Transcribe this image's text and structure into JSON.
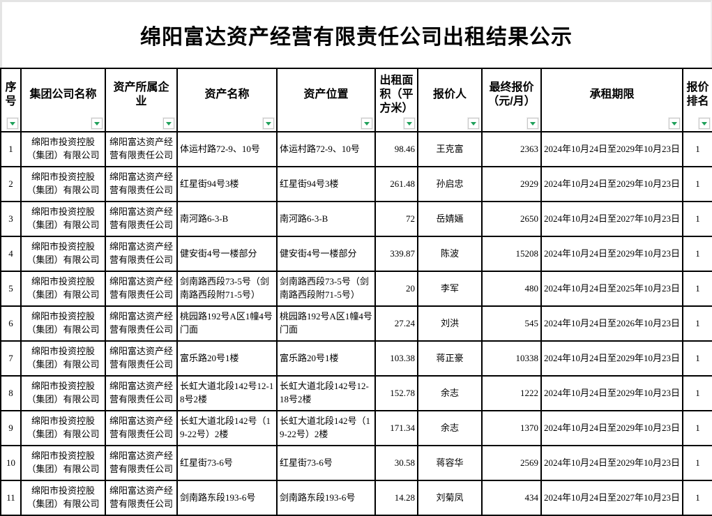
{
  "page": {
    "title": "绵阳富达资产经营有限责任公司出租结果公示"
  },
  "table": {
    "filter_color": "#1FA05A",
    "columns": [
      {
        "key": "index",
        "label": "序号"
      },
      {
        "key": "group-company",
        "label": "集团公司名称"
      },
      {
        "key": "asset-owner",
        "label": "资产所属企业"
      },
      {
        "key": "asset-name",
        "label": "资产名称"
      },
      {
        "key": "asset-location",
        "label": "资产位置"
      },
      {
        "key": "area-sqm",
        "label": "出租面积（平方米）"
      },
      {
        "key": "bidder",
        "label": "报价人"
      },
      {
        "key": "final-price",
        "label": "最终报价（元/月）"
      },
      {
        "key": "lease-term",
        "label": "承租期限"
      },
      {
        "key": "price-rank",
        "label": "报价排名"
      }
    ],
    "rows": [
      [
        "1",
        "绵阳市投资控股（集团）有限公司",
        "绵阳富达资产经营有限责任公司",
        "体运村路72-9、10号",
        "体运村路72-9、10号",
        "98.46",
        "王克富",
        "2363",
        "2024年10月24日至2029年10月23日",
        "1"
      ],
      [
        "2",
        "绵阳市投资控股（集团）有限公司",
        "绵阳富达资产经营有限责任公司",
        "红星街94号3楼",
        "红星街94号3楼",
        "261.48",
        "孙启忠",
        "2929",
        "2024年10月24日至2029年10月23日",
        "1"
      ],
      [
        "3",
        "绵阳市投资控股（集团）有限公司",
        "绵阳富达资产经营有限责任公司",
        "南河路6-3-B",
        "南河路6-3-B",
        "72",
        "岳婧婳",
        "2650",
        "2024年10月24日至2027年10月23日",
        "1"
      ],
      [
        "4",
        "绵阳市投资控股（集团）有限公司",
        "绵阳富达资产经营有限责任公司",
        "健安街4号一楼部分",
        "健安街4号一楼部分",
        "339.87",
        "陈波",
        "15208",
        "2024年10月24日至2029年10月23日",
        "1"
      ],
      [
        "5",
        "绵阳市投资控股（集团）有限公司",
        "绵阳富达资产经营有限责任公司",
        "剑南路西段73-5号（剑南路西段附71-5号）",
        "剑南路西段73-5号（剑南路西段附71-5号）",
        "20",
        "李军",
        "480",
        "2024年10月24日至2025年10月23日",
        "1"
      ],
      [
        "6",
        "绵阳市投资控股（集团）有限公司",
        "绵阳富达资产经营有限责任公司",
        "桃园路192号A区1幢4号门面",
        "桃园路192号A区1幢4号门面",
        "27.24",
        "刘洪",
        "545",
        "2024年10月24日至2026年10月23日",
        "1"
      ],
      [
        "7",
        "绵阳市投资控股（集团）有限公司",
        "绵阳富达资产经营有限责任公司",
        "富乐路20号1楼",
        "富乐路20号1楼",
        "103.38",
        "蒋正豪",
        "10338",
        "2024年10月24日至2029年10月23日",
        "1"
      ],
      [
        "8",
        "绵阳市投资控股（集团）有限公司",
        "绵阳富达资产经营有限责任公司",
        "长虹大道北段142号12-18号2楼",
        "长虹大道北段142号12-18号2楼",
        "152.78",
        "余志",
        "1222",
        "2024年10月24日至2029年10月23日",
        "1"
      ],
      [
        "9",
        "绵阳市投资控股（集团）有限公司",
        "绵阳富达资产经营有限责任公司",
        "长虹大道北段142号（19-22号）2楼",
        "长虹大道北段142号（19-22号）2楼",
        "171.34",
        "余志",
        "1370",
        "2024年10月24日至2029年10月23日",
        "1"
      ],
      [
        "10",
        "绵阳市投资控股（集团）有限公司",
        "绵阳富达资产经营有限责任公司",
        "红星街73-6号",
        "红星街73-6号",
        "30.58",
        "蒋容华",
        "2569",
        "2024年10月24日至2029年10月23日",
        "1"
      ],
      [
        "11",
        "绵阳市投资控股（集团）有限公司",
        "绵阳富达资产经营有限责任公司",
        "剑南路东段193-6号",
        "剑南路东段193-6号",
        "14.28",
        "刘菊凤",
        "434",
        "2024年10月24日至2027年10月23日",
        "1"
      ]
    ]
  }
}
